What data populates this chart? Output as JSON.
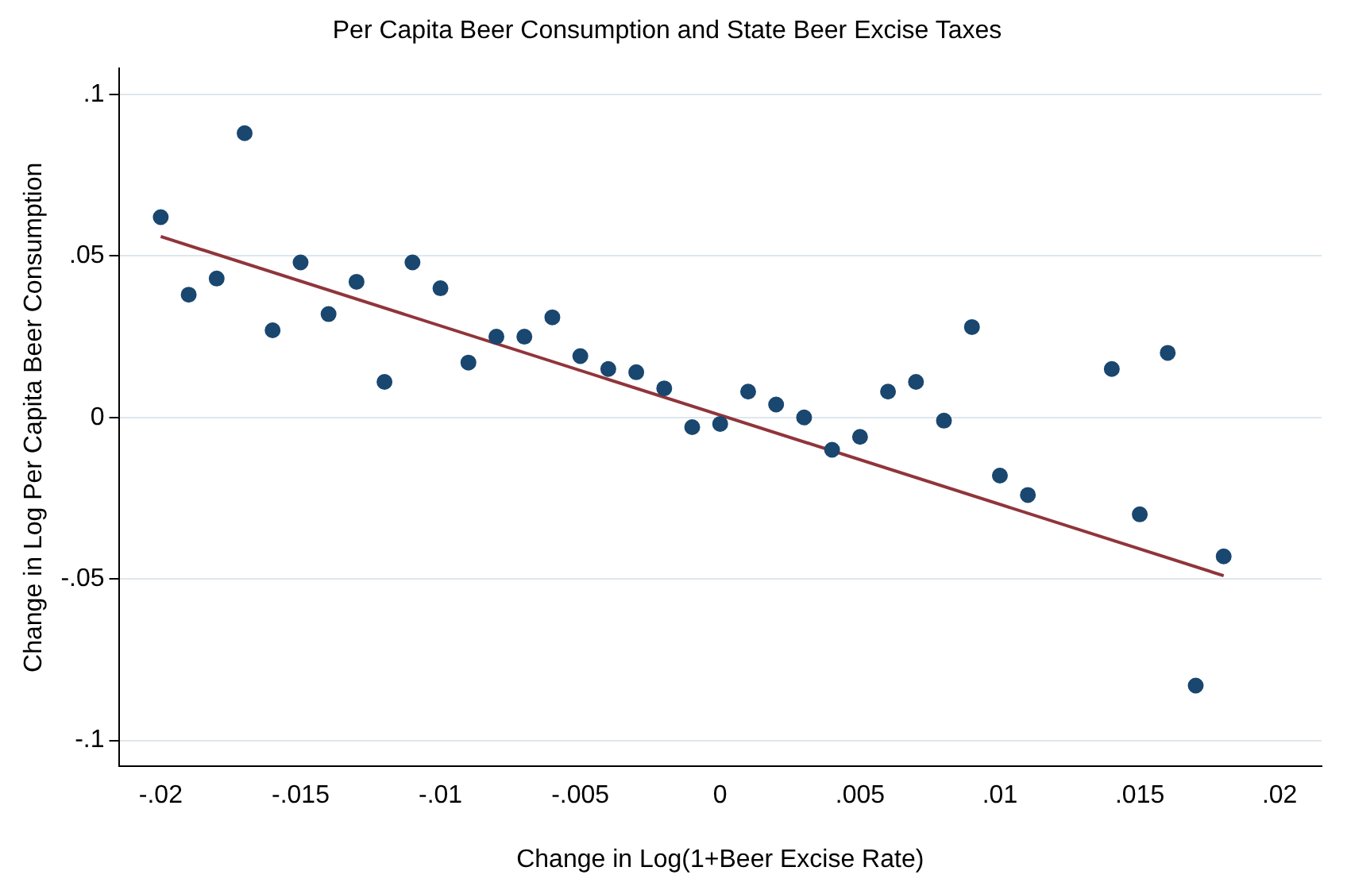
{
  "chart_data": {
    "type": "scatter",
    "title": "Per Capita Beer Consumption and State Beer Excise Taxes",
    "xlabel": "Change in Log(1+Beer Excise Rate)",
    "ylabel": "Change in Log Per Capita Beer Consumption",
    "xlim": [
      -0.0215,
      0.0215
    ],
    "ylim": [
      -0.108,
      0.108
    ],
    "xticks": [
      {
        "value": -0.02,
        "label": "-.02"
      },
      {
        "value": -0.015,
        "label": "-.015"
      },
      {
        "value": -0.01,
        "label": "-.01"
      },
      {
        "value": -0.005,
        "label": "-.005"
      },
      0,
      {
        "value": 0.005,
        "label": ".005"
      },
      {
        "value": 0.01,
        "label": ".01"
      },
      {
        "value": 0.015,
        "label": ".015"
      },
      {
        "value": 0.02,
        "label": ".02"
      }
    ],
    "yticks": [
      {
        "value": -0.1,
        "label": "-.1"
      },
      {
        "value": -0.05,
        "label": "-.05"
      },
      0,
      {
        "value": 0.05,
        "label": ".05"
      },
      {
        "value": 0.1,
        "label": ".1"
      }
    ],
    "grid": "y",
    "legend": false,
    "series": [
      {
        "type": "scatter",
        "marker": "circle",
        "color": "#1a476f",
        "x": [
          -0.02,
          -0.019,
          -0.018,
          -0.017,
          -0.016,
          -0.015,
          -0.014,
          -0.013,
          -0.012,
          -0.011,
          -0.01,
          -0.009,
          -0.008,
          -0.007,
          -0.006,
          -0.005,
          -0.004,
          -0.003,
          -0.002,
          -0.001,
          0,
          0.001,
          0.002,
          0.003,
          0.004,
          0.005,
          0.006,
          0.007,
          0.008,
          0.009,
          0.01,
          0.011,
          0.014,
          0.015,
          0.016,
          0.017,
          0.018
        ],
        "values": [
          0.062,
          0.038,
          0.043,
          0.088,
          0.027,
          0.048,
          0.032,
          0.042,
          0.011,
          0.048,
          0.04,
          0.017,
          0.025,
          0.025,
          0.031,
          0.019,
          0.015,
          0.014,
          0.009,
          -0.003,
          -0.002,
          0.008,
          0.004,
          0.0,
          -0.01,
          -0.006,
          0.008,
          0.011,
          -0.001,
          0.028,
          -0.018,
          -0.024,
          0.015,
          -0.03,
          0.02,
          -0.083,
          -0.043
        ]
      },
      {
        "type": "line",
        "marker": "none",
        "color": "#90353b",
        "x": [
          -0.02,
          0.018
        ],
        "values": [
          0.056,
          -0.049
        ]
      }
    ]
  }
}
